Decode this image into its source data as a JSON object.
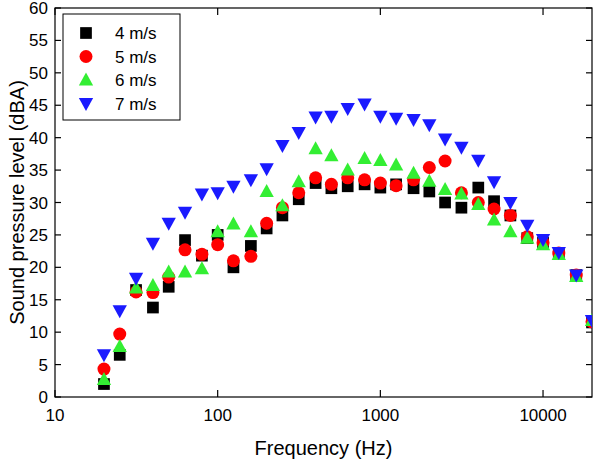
{
  "chart_data": {
    "type": "scatter",
    "x_label": "Frequency (Hz)",
    "y_label": "Sound pressure level (dBA)",
    "x": [
      20,
      25,
      31.5,
      40,
      50,
      63,
      80,
      100,
      125,
      160,
      200,
      250,
      315,
      400,
      500,
      630,
      800,
      1000,
      1250,
      1600,
      2000,
      2500,
      3150,
      4000,
      5000,
      6300,
      8000,
      10000,
      12500,
      16000,
      20000
    ],
    "series": [
      {
        "name": "4 m/s",
        "color": "#000000",
        "marker": "square",
        "values": [
          2,
          6.5,
          16.5,
          13.8,
          17,
          24.2,
          21.8,
          25,
          20,
          23.3,
          26,
          28,
          30.5,
          33,
          32.2,
          32.5,
          32.8,
          32.3,
          32.8,
          32.2,
          31.7,
          30,
          29.2,
          32.3,
          30.2,
          28,
          24.5,
          23.8,
          22.2,
          18.8,
          11.5
        ]
      },
      {
        "name": "5 m/s",
        "color": "#ff0000",
        "marker": "circle",
        "values": [
          4.3,
          9.7,
          16.2,
          16.1,
          18.5,
          22.7,
          22,
          23.5,
          21,
          21.7,
          26.8,
          29.2,
          31.5,
          33.8,
          32.8,
          33.8,
          33.5,
          33,
          32.6,
          33.5,
          35.4,
          36.4,
          31.5,
          30,
          29,
          28,
          24.7,
          23.8,
          22.2,
          18.8,
          11.6
        ]
      },
      {
        "name": "6 m/s",
        "color": "#33ee33",
        "marker": "triangle-up",
        "values": [
          2.7,
          7.8,
          16.8,
          17.2,
          19.3,
          19.3,
          19.8,
          25.5,
          26.7,
          25.5,
          31.7,
          29.5,
          33.2,
          38.3,
          37.2,
          35,
          36.8,
          36.5,
          35.8,
          34.5,
          33.3,
          32,
          31.3,
          29.7,
          27.3,
          25.5,
          24.5,
          23.5,
          22,
          18.6,
          11.8
        ]
      },
      {
        "name": "7 m/s",
        "color": "#1a1aff",
        "marker": "triangle-down",
        "values": [
          6.5,
          13.3,
          18.3,
          23.7,
          26.8,
          28.5,
          31.3,
          31.5,
          32.5,
          33.5,
          35.2,
          38.8,
          40.8,
          43.2,
          43.3,
          44.5,
          45.2,
          43.3,
          43,
          42.8,
          42,
          39.8,
          38.5,
          36.5,
          33.2,
          30,
          26.5,
          24.3,
          22.3,
          18.8,
          11.8
        ]
      }
    ],
    "xlim": [
      10,
      20000
    ],
    "xticks": [
      10,
      100,
      1000,
      10000
    ],
    "ylim": [
      0,
      60
    ],
    "yticks": [
      0,
      5,
      10,
      15,
      20,
      25,
      30,
      35,
      40,
      45,
      50,
      55,
      60
    ],
    "log": "x",
    "grid": false,
    "legend": "upper left"
  }
}
